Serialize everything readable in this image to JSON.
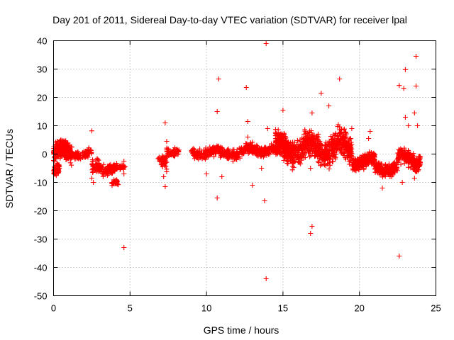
{
  "chart_data": {
    "type": "scatter",
    "title": "Day 201 of 2011, Sidereal Day-to-day VTEC variation (SDTVAR) for receiver lpal",
    "xlabel": "GPS time / hours",
    "ylabel": "SDTVAR / TECUs",
    "xlim": [
      0,
      25
    ],
    "ylim": [
      -50,
      40
    ],
    "xticks": [
      0,
      5,
      10,
      15,
      20,
      25
    ],
    "yticks": [
      -50,
      -40,
      -30,
      -20,
      -10,
      0,
      10,
      20,
      30,
      40
    ],
    "grid": true,
    "marker": "+",
    "color": "#ff0000",
    "clusters": [
      {
        "x0": 0.0,
        "x1": 1.2,
        "yc": 0.5,
        "spread": 4.5,
        "n": 260
      },
      {
        "x0": 0.0,
        "x1": 0.4,
        "yc": -6.0,
        "spread": 3.0,
        "n": 60
      },
      {
        "x0": 0.5,
        "x1": 2.5,
        "yc": 0.0,
        "spread": 2.0,
        "n": 160
      },
      {
        "x0": 2.5,
        "x1": 4.2,
        "yc": -5.0,
        "spread": 3.0,
        "n": 150
      },
      {
        "x0": 3.8,
        "x1": 4.3,
        "yc": -10.0,
        "spread": 2.0,
        "n": 30
      },
      {
        "x0": 4.3,
        "x1": 4.7,
        "yc": -5.0,
        "spread": 1.5,
        "n": 20
      },
      {
        "x0": 6.8,
        "x1": 7.4,
        "yc": -2.0,
        "spread": 4.0,
        "n": 50
      },
      {
        "x0": 7.4,
        "x1": 8.2,
        "yc": 1.0,
        "spread": 2.0,
        "n": 60
      },
      {
        "x0": 9.0,
        "x1": 12.5,
        "yc": 0.5,
        "spread": 2.5,
        "n": 300
      },
      {
        "x0": 12.5,
        "x1": 14.5,
        "yc": 1.5,
        "spread": 2.5,
        "n": 220
      },
      {
        "x0": 14.5,
        "x1": 16.0,
        "yc": 2.0,
        "spread": 6.0,
        "n": 320
      },
      {
        "x0": 16.0,
        "x1": 18.0,
        "yc": 2.0,
        "spread": 6.0,
        "n": 340
      },
      {
        "x0": 18.0,
        "x1": 19.5,
        "yc": 2.0,
        "spread": 7.0,
        "n": 260
      },
      {
        "x0": 19.5,
        "x1": 21.0,
        "yc": -2.5,
        "spread": 3.5,
        "n": 240
      },
      {
        "x0": 21.0,
        "x1": 22.5,
        "yc": -5.0,
        "spread": 3.0,
        "n": 220
      },
      {
        "x0": 22.5,
        "x1": 24.0,
        "yc": -2.0,
        "spread": 4.0,
        "n": 220
      }
    ],
    "outliers": [
      [
        2.5,
        8.2
      ],
      [
        2.5,
        -8.5
      ],
      [
        2.6,
        -10.0
      ],
      [
        4.6,
        -33.0
      ],
      [
        4.6,
        -2.5
      ],
      [
        4.6,
        -7.0
      ],
      [
        7.3,
        11.0
      ],
      [
        7.3,
        -11.5
      ],
      [
        7.2,
        -8.0
      ],
      [
        7.4,
        4.5
      ],
      [
        10.0,
        -7.0
      ],
      [
        10.7,
        15.0
      ],
      [
        10.8,
        26.5
      ],
      [
        10.7,
        -15.5
      ],
      [
        11.0,
        -8.0
      ],
      [
        12.6,
        23.5
      ],
      [
        12.7,
        11.5
      ],
      [
        12.7,
        6.0
      ],
      [
        13.0,
        -11.0
      ],
      [
        13.6,
        -5.0
      ],
      [
        13.8,
        -16.5
      ],
      [
        13.9,
        39.0
      ],
      [
        13.9,
        -44.0
      ],
      [
        14.0,
        9.0
      ],
      [
        15.0,
        15.5
      ],
      [
        16.8,
        -28.0
      ],
      [
        16.9,
        -25.5
      ],
      [
        16.9,
        14.5
      ],
      [
        16.8,
        -5.0
      ],
      [
        17.5,
        21.5
      ],
      [
        18.0,
        17.0
      ],
      [
        18.7,
        26.5
      ],
      [
        19.5,
        9.0
      ],
      [
        20.6,
        5.5
      ],
      [
        20.7,
        8.0
      ],
      [
        21.5,
        -12.0
      ],
      [
        22.0,
        -8.0
      ],
      [
        22.6,
        24.2
      ],
      [
        22.6,
        -36.0
      ],
      [
        22.8,
        -10.0
      ],
      [
        23.0,
        29.8
      ],
      [
        22.9,
        23.2
      ],
      [
        23.0,
        13.0
      ],
      [
        23.2,
        10.0
      ],
      [
        23.7,
        34.5
      ],
      [
        23.7,
        24.0
      ],
      [
        23.6,
        14.5
      ],
      [
        23.8,
        10.0
      ],
      [
        23.6,
        -8.5
      ],
      [
        23.9,
        -3.0
      ]
    ]
  }
}
